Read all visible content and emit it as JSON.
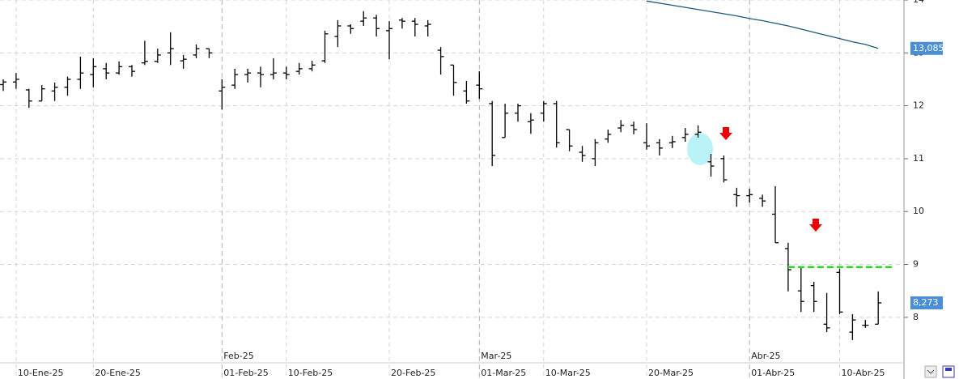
{
  "chart_data": {
    "type": "ohlc",
    "categories": [
      null,
      "10-Ene-25",
      null,
      null,
      null,
      null,
      null,
      "20-Ene-25",
      null,
      null,
      null,
      null,
      null,
      null,
      null,
      null,
      null,
      "01-Feb-25",
      null,
      null,
      null,
      null,
      "10-Feb-25",
      null,
      null,
      null,
      null,
      null,
      null,
      null,
      "20-Feb-25",
      null,
      null,
      null,
      null,
      null,
      null,
      "01-Mar-25",
      null,
      null,
      null,
      null,
      "10-Mar-25",
      null,
      null,
      null,
      null,
      null,
      null,
      null,
      "20-Mar-25",
      null,
      null,
      null,
      null,
      null,
      null,
      null,
      "01-Abr-25",
      null,
      null,
      null,
      null,
      null,
      null,
      "10-Abr-25",
      null,
      null,
      null
    ],
    "month_labels": [
      null,
      null,
      null,
      null,
      null,
      null,
      null,
      null,
      null,
      null,
      null,
      null,
      null,
      null,
      null,
      null,
      null,
      "Feb-25",
      null,
      null,
      null,
      null,
      null,
      null,
      null,
      null,
      null,
      null,
      null,
      null,
      null,
      null,
      null,
      null,
      null,
      null,
      null,
      "Mar-25",
      null,
      null,
      null,
      null,
      null,
      null,
      null,
      null,
      null,
      null,
      null,
      null,
      null,
      null,
      null,
      null,
      null,
      null,
      null,
      null,
      "Abr-25",
      null,
      null,
      null,
      null,
      null,
      null,
      null,
      null,
      null,
      null
    ],
    "ohlc": {
      "color": "#000000",
      "last_label": "8,273",
      "open": [
        12.4,
        12.45,
        12.3,
        12.09,
        12.28,
        12.35,
        12.5,
        12.59,
        12.7,
        12.62,
        12.74,
        12.81,
        12.84,
        13.0,
        12.85,
        12.96,
        13.08,
        12.28,
        12.39,
        12.59,
        12.62,
        12.59,
        12.62,
        12.65,
        12.7,
        12.85,
        13.31,
        13.51,
        13.6,
        13.66,
        13.42,
        13.62,
        13.6,
        13.51,
        13.05,
        12.77,
        12.28,
        12.39,
        12.04,
        11.4,
        11.86,
        11.7,
        11.86,
        12.04,
        11.55,
        11.12,
        11.0,
        11.37,
        11.58,
        11.63,
        11.3,
        11.3,
        11.3,
        11.4,
        11.46,
        10.94,
        11.0,
        10.32,
        10.3,
        10.25,
        9.95,
        9.3,
        8.5,
        8.6,
        7.87,
        8.85,
        7.72,
        7.85,
        7.87
      ],
      "high": [
        12.5,
        12.62,
        12.32,
        12.39,
        12.44,
        12.55,
        12.93,
        12.9,
        12.81,
        12.84,
        12.77,
        13.23,
        13.08,
        13.39,
        12.96,
        13.16,
        13.08,
        12.5,
        12.7,
        12.7,
        12.74,
        12.9,
        12.74,
        12.81,
        12.85,
        13.42,
        13.62,
        13.54,
        13.79,
        13.72,
        13.6,
        13.66,
        13.66,
        13.62,
        13.11,
        12.77,
        12.47,
        12.65,
        12.09,
        12.04,
        12.04,
        11.86,
        12.09,
        12.09,
        11.55,
        11.24,
        11.37,
        11.55,
        11.73,
        11.7,
        11.67,
        11.37,
        11.43,
        11.58,
        11.63,
        11.09,
        11.06,
        10.45,
        10.43,
        10.32,
        10.48,
        9.41,
        8.95,
        8.67,
        8.46,
        8.92,
        8.06,
        7.95,
        8.49
      ],
      "low": [
        12.28,
        12.32,
        11.96,
        12.09,
        12.09,
        12.19,
        12.32,
        12.35,
        12.5,
        12.59,
        12.55,
        12.77,
        12.81,
        12.77,
        12.7,
        12.9,
        12.9,
        11.93,
        12.32,
        12.44,
        12.35,
        12.5,
        12.5,
        12.59,
        12.65,
        12.81,
        13.11,
        13.36,
        13.51,
        13.31,
        12.88,
        13.46,
        13.31,
        13.31,
        12.59,
        12.19,
        12.04,
        12.13,
        10.86,
        11.4,
        11.7,
        11.47,
        11.7,
        11.21,
        11.14,
        10.94,
        10.86,
        11.3,
        11.5,
        11.46,
        11.17,
        11.06,
        11.2,
        11.32,
        11.4,
        10.66,
        10.55,
        10.09,
        10.17,
        10.09,
        9.41,
        8.49,
        8.1,
        8.1,
        7.72,
        8.06,
        7.57,
        7.8,
        7.87
      ],
      "close": [
        12.45,
        12.5,
        12.09,
        12.32,
        12.35,
        12.5,
        12.62,
        12.74,
        12.62,
        12.74,
        12.65,
        12.84,
        12.96,
        13.08,
        12.88,
        13.08,
        13.0,
        12.35,
        12.59,
        12.62,
        12.59,
        12.62,
        12.59,
        12.7,
        12.77,
        13.36,
        13.51,
        13.46,
        13.66,
        13.46,
        13.46,
        13.6,
        13.54,
        13.54,
        12.93,
        12.44,
        12.09,
        12.32,
        11.06,
        11.86,
        12.0,
        11.73,
        12.04,
        11.3,
        11.24,
        11.06,
        11.3,
        11.46,
        11.63,
        11.55,
        11.24,
        11.2,
        11.32,
        11.46,
        11.5,
        10.86,
        10.6,
        10.3,
        10.32,
        10.2,
        9.41,
        8.9,
        8.3,
        8.3,
        7.8,
        8.1,
        7.95,
        7.85,
        8.273
      ]
    },
    "moving_average": {
      "color": "#1b5a78",
      "last_label": "13,085",
      "values": [
        null,
        null,
        null,
        null,
        null,
        null,
        null,
        null,
        null,
        null,
        null,
        null,
        null,
        null,
        null,
        null,
        null,
        null,
        null,
        null,
        null,
        null,
        null,
        null,
        null,
        null,
        null,
        null,
        null,
        null,
        null,
        null,
        null,
        null,
        null,
        null,
        null,
        null,
        null,
        null,
        null,
        null,
        null,
        null,
        null,
        null,
        null,
        null,
        null,
        null,
        13.98,
        13.94,
        13.9,
        13.86,
        13.82,
        13.78,
        13.74,
        13.7,
        13.65,
        13.61,
        13.56,
        13.51,
        13.45,
        13.39,
        13.33,
        13.27,
        13.21,
        13.16,
        13.085
      ]
    },
    "reference_line": {
      "value": 8.95,
      "color": "#22dd22"
    },
    "ylim": [
      7.155,
      14.0
    ],
    "yticks": [
      8,
      9,
      10,
      11,
      12,
      13,
      14
    ],
    "grid": true
  }
}
